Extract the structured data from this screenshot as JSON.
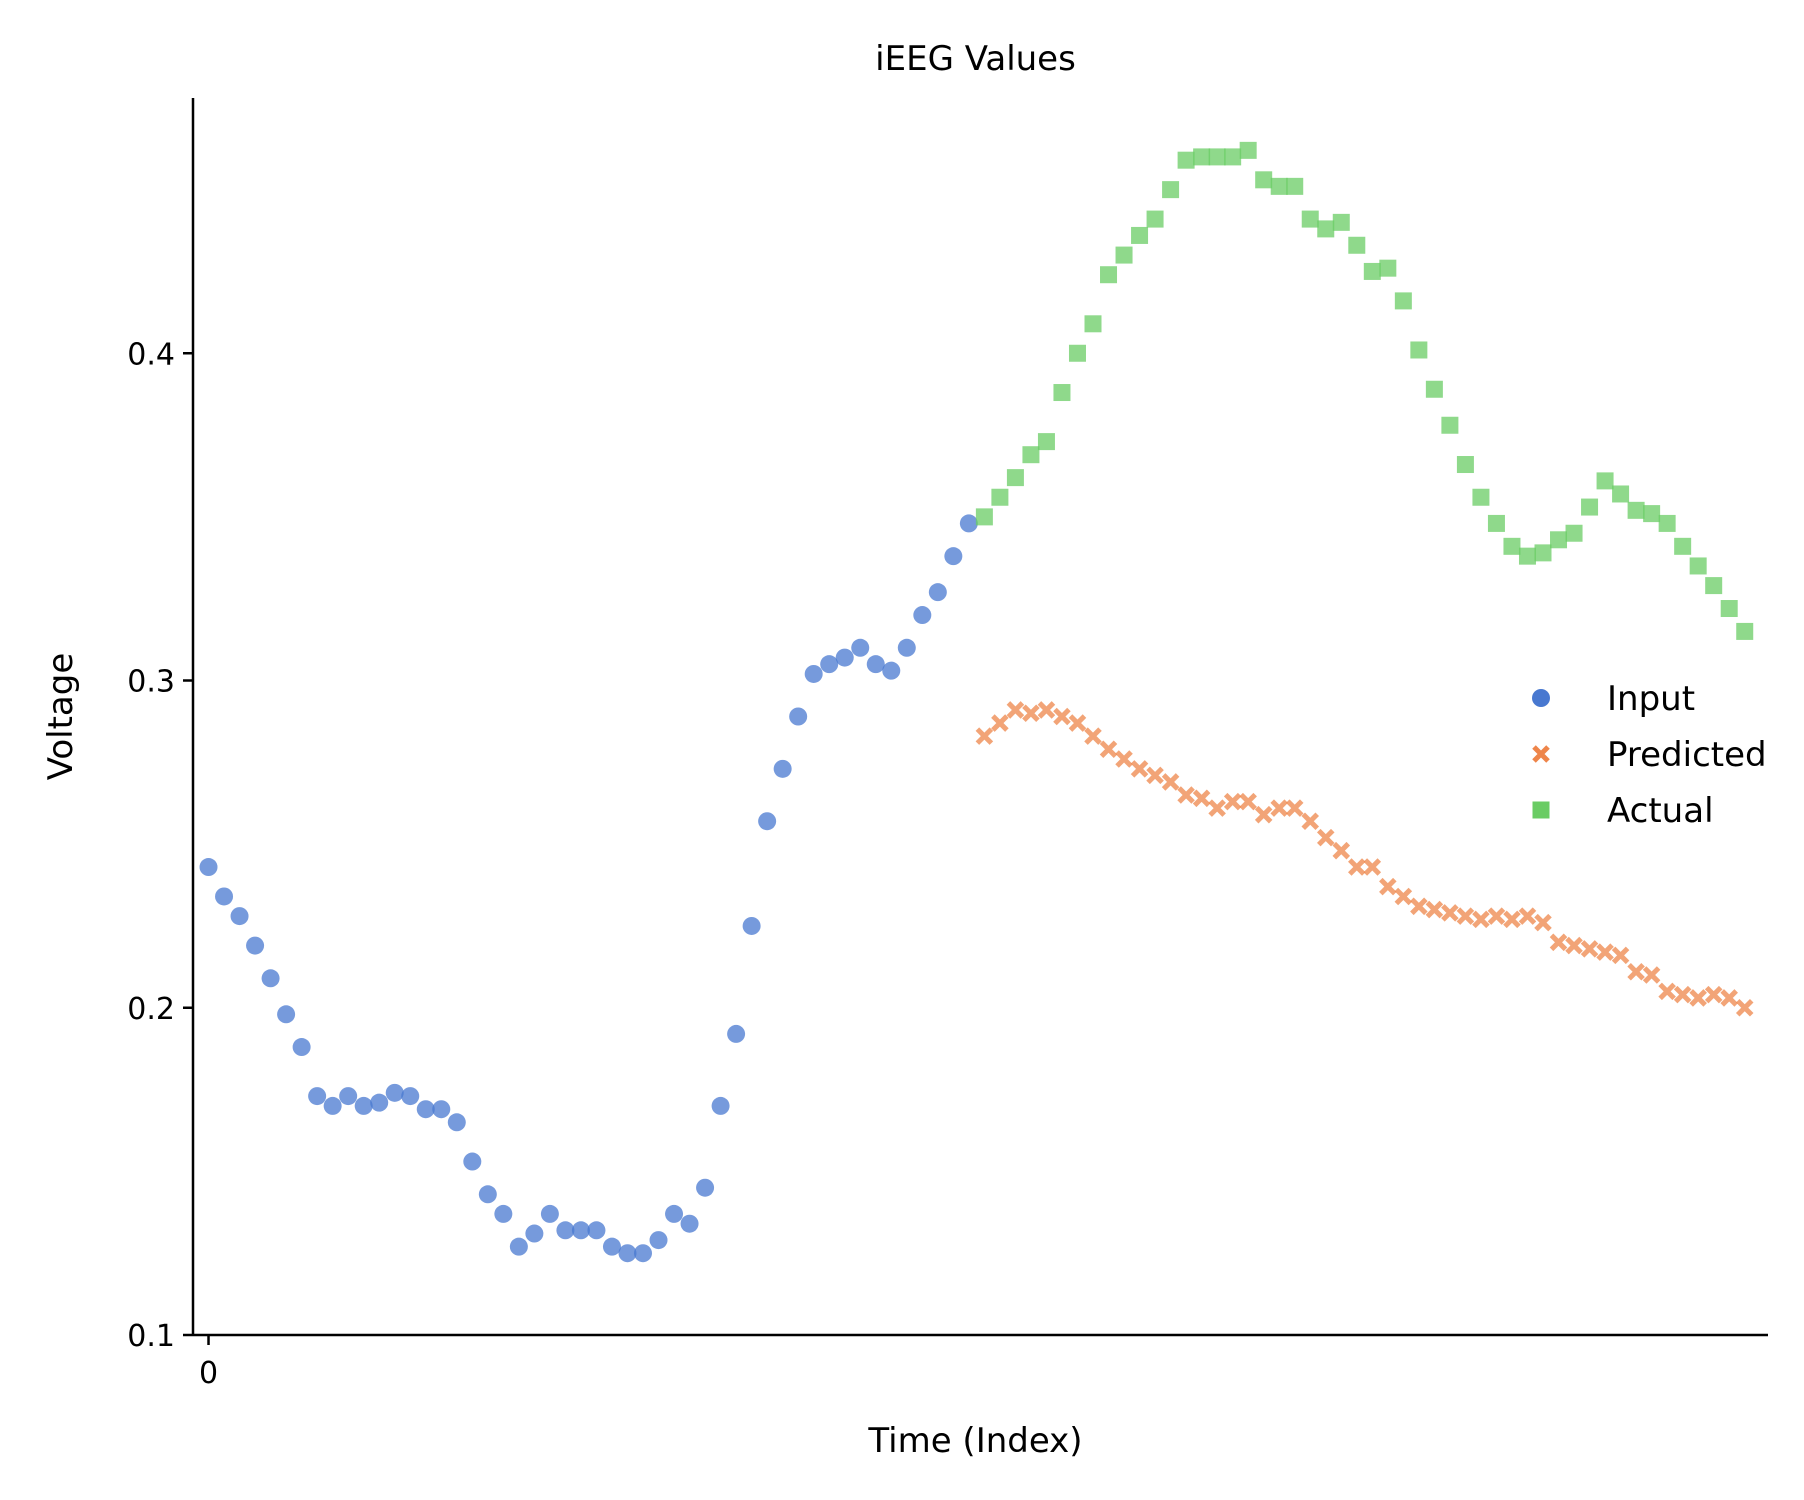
{
  "chart_data": {
    "type": "scatter",
    "title": "iEEG Values",
    "xlabel": "Time (Index)",
    "ylabel": "Voltage",
    "ylim": [
      0.1,
      0.478
    ],
    "xlim": [
      -1,
      100.5
    ],
    "x_ticks": [
      0
    ],
    "y_ticks": [
      0.1,
      0.2,
      0.3,
      0.4
    ],
    "grid": false,
    "legend_position": "right",
    "series": [
      {
        "name": "Input",
        "marker": "circle",
        "color": "#4878d0",
        "x_start": 0,
        "values": [
          0.243,
          0.234,
          0.228,
          0.219,
          0.209,
          0.198,
          0.188,
          0.173,
          0.17,
          0.173,
          0.17,
          0.171,
          0.174,
          0.173,
          0.169,
          0.169,
          0.165,
          0.153,
          0.143,
          0.137,
          0.127,
          0.131,
          0.137,
          0.132,
          0.132,
          0.132,
          0.127,
          0.125,
          0.125,
          0.129,
          0.137,
          0.134,
          0.145,
          0.17,
          0.192,
          0.225,
          0.257,
          0.273,
          0.289,
          0.302,
          0.305,
          0.307,
          0.31,
          0.305,
          0.303,
          0.31,
          0.32,
          0.327,
          0.338,
          0.348
        ]
      },
      {
        "name": "Predicted",
        "marker": "x",
        "color": "#ee854a",
        "x_start": 50,
        "values": [
          0.283,
          0.287,
          0.291,
          0.29,
          0.291,
          0.289,
          0.287,
          0.283,
          0.279,
          0.276,
          0.273,
          0.271,
          0.269,
          0.265,
          0.264,
          0.261,
          0.263,
          0.263,
          0.259,
          0.261,
          0.261,
          0.257,
          0.252,
          0.248,
          0.243,
          0.243,
          0.237,
          0.234,
          0.231,
          0.23,
          0.229,
          0.228,
          0.227,
          0.228,
          0.227,
          0.228,
          0.226,
          0.22,
          0.219,
          0.218,
          0.217,
          0.216,
          0.211,
          0.21,
          0.205,
          0.204,
          0.203,
          0.204,
          0.203,
          0.2
        ]
      },
      {
        "name": "Actual",
        "marker": "square",
        "color": "#6acc64",
        "x_start": 50,
        "values": [
          0.35,
          0.356,
          0.362,
          0.369,
          0.373,
          0.388,
          0.4,
          0.409,
          0.424,
          0.43,
          0.436,
          0.441,
          0.45,
          0.459,
          0.46,
          0.46,
          0.46,
          0.462,
          0.453,
          0.451,
          0.451,
          0.441,
          0.438,
          0.44,
          0.433,
          0.425,
          0.426,
          0.416,
          0.401,
          0.389,
          0.378,
          0.366,
          0.356,
          0.348,
          0.341,
          0.338,
          0.339,
          0.343,
          0.345,
          0.353,
          0.361,
          0.357,
          0.352,
          0.351,
          0.348,
          0.341,
          0.335,
          0.329,
          0.322,
          0.315
        ]
      }
    ]
  }
}
